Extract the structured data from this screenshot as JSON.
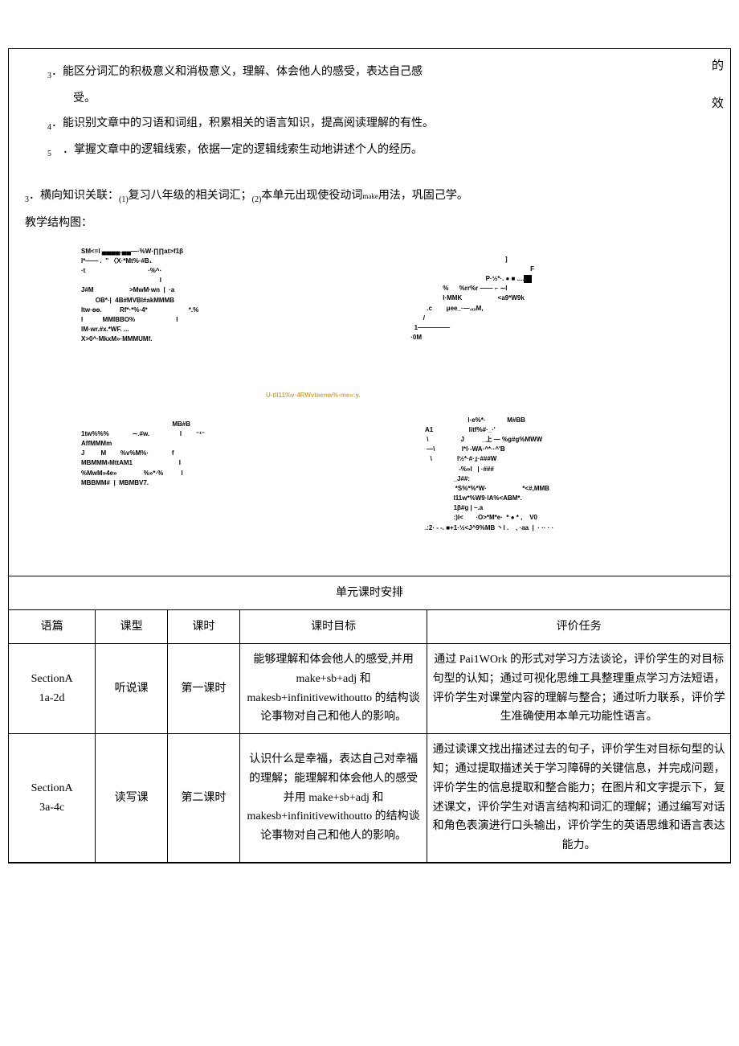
{
  "top": {
    "item3_num": "3",
    "item3_text": "．能区分词汇的积极意义和消极意义，理解、体会他人的感受，表达自己感",
    "item3_cont": "受。",
    "item4_num": "4",
    "item4_text": "．能识别文章中的习语和词组，积累相关的语言知识，提高阅读理解的有性。",
    "item5_num": "5",
    "item5_text": "．掌握文章中的逻辑线索，依据一定的逻辑线索生动地讲述个人的经历。",
    "side_char1": "的",
    "side_char2": "效",
    "cross_link_num": "3",
    "cross_link_prefix": "．横向知识关联：",
    "cross_link_sub1": "(1)",
    "cross_link_part1": "复习八年级的相关词汇；",
    "cross_link_sub2": "(2)",
    "cross_link_part2": "本单元出现使役动词",
    "cross_link_make": "make",
    "cross_link_part3": "用法，巩固己学。",
    "structure_title": "教学结构图："
  },
  "diagram": {
    "left": [
      "SM<=l ▄▄▄▄.▄▄—·%W·∏∏at>f1β",
      "l*—— .  '' 〈X·*Mt%·#B₁",
      "·t                                   ·%^·",
      "                                            l",
      "J#M                    >MwM·wn  |  ·a",
      "        OB*·|  4B#MVBl#akMMMB",
      "ltw·ɵɵ.          Rf*·*%·4*                       *.%",
      "l           MMIBBO%                       l",
      "lM·wr.#x.*WF. ...",
      "X>0^·MkxM»·MMMUMf."
    ],
    "right_top": [
      "                                                      ]",
      "                                                                    F",
      "                                           P·½*·. ● ■ ....",
      "                   %      %rr%r —— ⌐ ∼l",
      "                   l·MMK                    <a9*W9k",
      "          .c        μee_·—.ₓₓM,",
      "        /",
      "   1—————",
      " ·0M"
    ],
    "orange_text": "U·tll11%v·4RWvteenw%·me»:y.",
    "bottom_left": [
      "                                                   MB#B",
      "1tw%%%             ∼.#w.                 l        ⁻¹⁻",
      "AffMMMm",
      "J         M        %v%M%·             f",
      "MBMMM›MttAM1                          l",
      "%MwM»4e»               %»*·%          l",
      "MBBMM#  |  MBMBV7."
    ],
    "bottom_right": [
      "                        l·e%*·            M#BB",
      "A1                    litf%#·_·'",
      " \\                  J          _上 — %g#g%MWW",
      " —\\               l*l·-WA·^*··^'B",
      "   \\              l½*·#·』·###W",
      "                   -%»l   | ·###",
      "                _J##:",
      "                 *S%*%*W·                    *<#,MMB",
      "                l11w*%W9·IA%<ABM*.",
      "                1β#g | ~.a",
      "                :)l<       ·O>*M*e·  * ● * ,    V0",
      ".:2· - -. ■+1·½<J^9%MB 丶l .    , ·aa  |  · ·· · ·"
    ]
  },
  "unit_schedule_title": "单元课时安排",
  "table": {
    "headers": [
      "语篇",
      "课型",
      "课时",
      "课时目标",
      "评价任务"
    ],
    "rows": [
      {
        "text_title": "SectionA\n1a-2d",
        "class_type": "听说课",
        "period": "第一课时",
        "objective": "能够理解和体会他人的感受,并用 make+sb+adj 和makesb+infinitivewithoutto 的结构谈论事物对自己和他人的影响。",
        "evaluation": "通过 Pai1WOrk 的形式对学习方法谈论，评价学生的对目标句型的认知；通过可视化思维工具整理重点学习方法短语，评价学生对课堂内容的理解与整合；通过听力联系，评价学生准确使用本单元功能性语言。"
      },
      {
        "text_title": "SectionA\n3a-4c",
        "class_type": "读写课",
        "period": "第二课时",
        "objective": "认识什么是幸福，表达自己对幸福的理解；能理解和体会他人的感受并用 make+sb+adj  和makesb+infinitivewithoutto 的结构谈论事物对自己和他人的影响。",
        "evaluation": "通过读课文找出描述过去的句子，评价学生对目标句型的认知；通过提取描述关于学习障碍的关键信息，并完成问题，评价学生的信息提取和整合能力；在图片和文字提示下，复述课文，评价学生对语言结构和词汇的理解；通过编写对话和角色表演进行口头输出，评价学生的英语思维和语言表达能力。"
      }
    ]
  }
}
